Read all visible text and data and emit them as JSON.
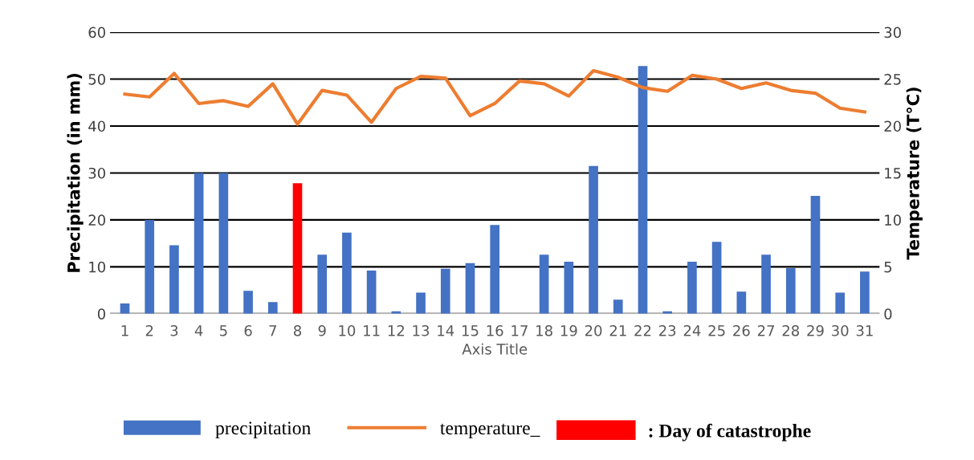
{
  "chart_data": {
    "type": "bar",
    "categories": [
      "1",
      "2",
      "3",
      "4",
      "5",
      "6",
      "7",
      "8",
      "9",
      "10",
      "11",
      "12",
      "13",
      "14",
      "15",
      "16",
      "17",
      "18",
      "19",
      "20",
      "21",
      "22",
      "23",
      "24",
      "25",
      "26",
      "27",
      "28",
      "29",
      "30",
      "31"
    ],
    "series": [
      {
        "name": "precipitation",
        "color": "#4472c4",
        "colors": [
          "#4472c4",
          "#4472c4",
          "#4472c4",
          "#4472c4",
          "#4472c4",
          "#4472c4",
          "#4472c4",
          "#ff0000",
          "#4472c4",
          "#4472c4",
          "#4472c4",
          "#4472c4",
          "#4472c4",
          "#4472c4",
          "#4472c4",
          "#4472c4",
          "#4472c4",
          "#4472c4",
          "#4472c4",
          "#4472c4",
          "#4472c4",
          "#4472c4",
          "#4472c4",
          "#4472c4",
          "#4472c4",
          "#4472c4",
          "#4472c4",
          "#4472c4",
          "#4472c4",
          "#4472c4",
          "#4472c4"
        ],
        "values": [
          2.2,
          20,
          14.6,
          30,
          30,
          4.9,
          2.5,
          27.8,
          12.6,
          17.3,
          9.2,
          0.5,
          4.5,
          9.6,
          10.8,
          18.9,
          0,
          12.6,
          11.1,
          31.5,
          3,
          52.8,
          0.5,
          11.1,
          15.3,
          4.7,
          12.6,
          9.7,
          25.1,
          4.5,
          9
        ]
      },
      {
        "name": "temperature_",
        "type": "line",
        "axis": "y2",
        "color": "#ed7d31",
        "values": [
          23.4,
          23.1,
          25.6,
          22.4,
          22.7,
          22.1,
          24.5,
          20.2,
          23.8,
          23.3,
          20.4,
          24.0,
          25.3,
          25.1,
          21.1,
          22.4,
          24.8,
          24.5,
          23.2,
          25.9,
          25.2,
          24.1,
          23.7,
          25.4,
          25.0,
          24.0,
          24.6,
          23.8,
          23.5,
          21.9,
          21.5
        ]
      }
    ],
    "xlabel": "Axis Title",
    "ylabel": "Precipitation (in mm)",
    "y2label": "Temperature (T°C)",
    "ylim": [
      0,
      60
    ],
    "yticks": [
      0,
      10,
      20,
      30,
      40,
      50,
      60
    ],
    "y2lim": [
      0,
      30
    ],
    "y2ticks": [
      0,
      5,
      10,
      15,
      20,
      25,
      30
    ],
    "annotations": [
      ": Day of catastrophe"
    ],
    "grid": "y",
    "legend": "bottom"
  }
}
